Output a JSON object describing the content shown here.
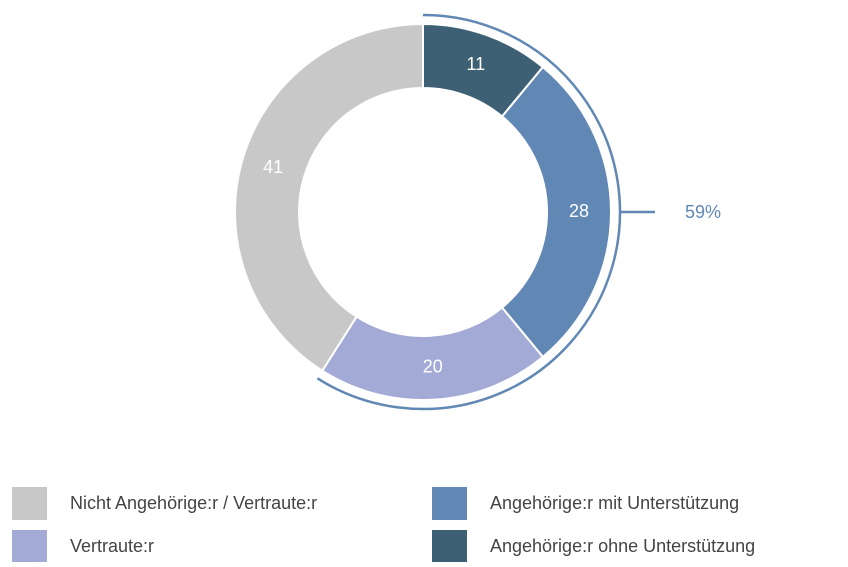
{
  "chart_data": {
    "type": "donut",
    "categories": [
      "Angehörige:r ohne Unterstützung",
      "Angehörige:r mit Unterstützung",
      "Vertraute:r",
      "Nicht Angehörige:r / Vertraute:r"
    ],
    "values": [
      11,
      28,
      20,
      41
    ],
    "colors": [
      "#3d6075",
      "#6188b5",
      "#a3aad6",
      "#c8c8c8"
    ],
    "annotation": {
      "value": 59,
      "label": "59%"
    }
  }
}
